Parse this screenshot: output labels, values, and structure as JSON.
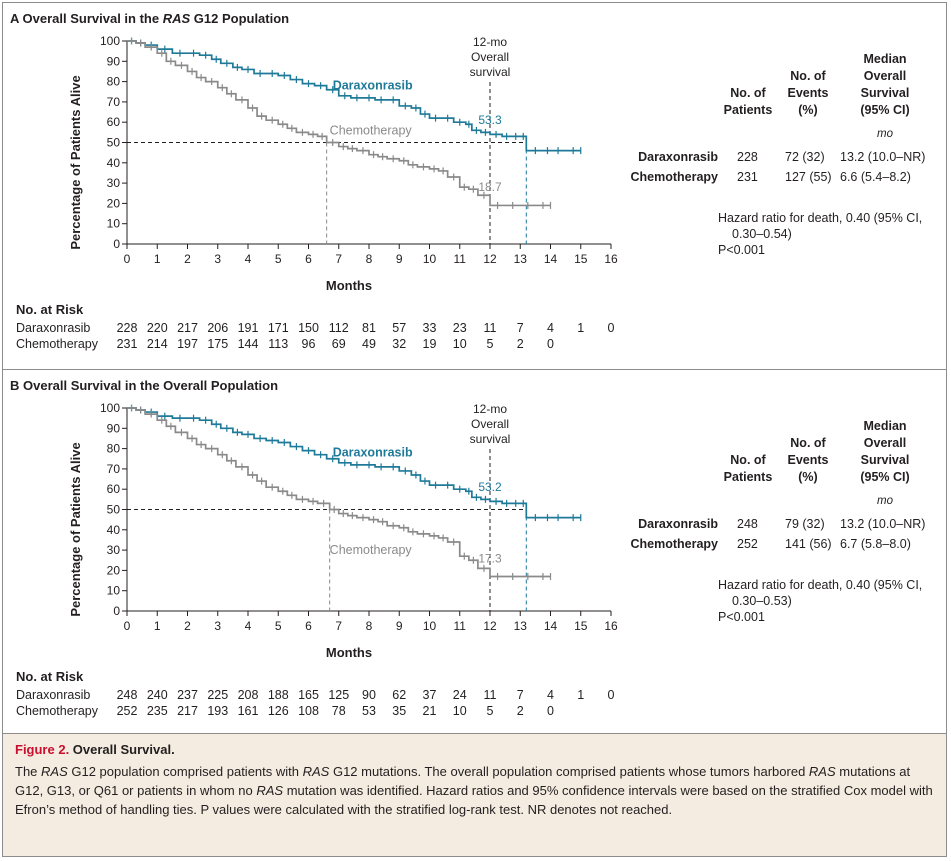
{
  "panels": [
    {
      "letter": "A",
      "title_pre": "Overall Survival in the ",
      "title_em": "RAS",
      "title_post": " G12 Population",
      "ylabel": "Percentage of Patients Alive",
      "xlabel": "Months",
      "landmark_label": [
        "12-mo",
        "Overall",
        "survival"
      ],
      "risk_title": "No. at Risk",
      "risk": [
        {
          "label": "Daraxonrasib",
          "values": [
            "228",
            "220",
            "217",
            "206",
            "191",
            "171",
            "150",
            "112",
            "81",
            "57",
            "33",
            "23",
            "11",
            "7",
            "4",
            "1",
            "0"
          ]
        },
        {
          "label": "Chemotherapy",
          "values": [
            "231",
            "214",
            "197",
            "175",
            "144",
            "113",
            "96",
            "69",
            "49",
            "32",
            "19",
            "10",
            "5",
            "2",
            "0"
          ]
        }
      ],
      "table": {
        "headers": {
          "patients": [
            "No. of",
            "Patients"
          ],
          "events": [
            "No. of",
            "Events",
            "(%)"
          ],
          "median": [
            "Median",
            "Overall",
            "Survival",
            "(95% CI)"
          ],
          "unit": "mo"
        },
        "rows": [
          {
            "label": "Daraxonrasib",
            "patients": "228",
            "events": "72 (32)",
            "median": "13.2 (10.0–NR)"
          },
          {
            "label": "Chemotherapy",
            "patients": "231",
            "events": "127 (55)",
            "median": "6.6 (5.4–8.2)"
          }
        ],
        "hr": [
          "Hazard ratio for death, 0.40 (95% CI,",
          "0.30–0.54)",
          "P<0.001"
        ]
      }
    },
    {
      "letter": "B",
      "title_pre": "Overall Survival in the Overall Population",
      "title_em": "",
      "title_post": "",
      "ylabel": "Percentage of Patients Alive",
      "xlabel": "Months",
      "landmark_label": [
        "12-mo",
        "Overall",
        "survival"
      ],
      "risk_title": "No. at Risk",
      "risk": [
        {
          "label": "Daraxonrasib",
          "values": [
            "248",
            "240",
            "237",
            "225",
            "208",
            "188",
            "165",
            "125",
            "90",
            "62",
            "37",
            "24",
            "11",
            "7",
            "4",
            "1",
            "0"
          ]
        },
        {
          "label": "Chemotherapy",
          "values": [
            "252",
            "235",
            "217",
            "193",
            "161",
            "126",
            "108",
            "78",
            "53",
            "35",
            "21",
            "10",
            "5",
            "2",
            "0"
          ]
        }
      ],
      "table": {
        "headers": {
          "patients": [
            "No. of",
            "Patients"
          ],
          "events": [
            "No. of",
            "Events",
            "(%)"
          ],
          "median": [
            "Median",
            "Overall",
            "Survival",
            "(95% CI)"
          ],
          "unit": "mo"
        },
        "rows": [
          {
            "label": "Daraxonrasib",
            "patients": "248",
            "events": "79 (32)",
            "median": "13.2 (10.0–NR)"
          },
          {
            "label": "Chemotherapy",
            "patients": "252",
            "events": "141 (56)",
            "median": "6.7 (5.8–8.0)"
          }
        ],
        "hr": [
          "Hazard ratio for death, 0.40 (95% CI,",
          "0.30–0.53)",
          "P<0.001"
        ]
      }
    }
  ],
  "caption": {
    "fig_label": "Figure 2.",
    "fig_title": " Overall Survival.",
    "body_html": "The <i>RAS</i> G12 population comprised patients with <i>RAS</i> G12 mutations. The overall population comprised patients whose tumors harbored <i>RAS</i> mutations at G12, G13, or Q61 or patients in whom no <i>RAS</i> mutation was identified. Hazard ratios and 95% confidence intervals were based on the stratified Cox model with Efron’s method of handling ties. P values were calculated with the stratified log-rank test. NR denotes not reached."
  },
  "colors": {
    "daraxonrasib": "#1f7a99",
    "chemotherapy": "#8a8a8a",
    "axis": "#231f20"
  },
  "chart_data": [
    {
      "type": "line",
      "title": "Overall Survival in the RAS G12 Population",
      "xlabel": "Months",
      "ylabel": "Percentage of Patients Alive",
      "xlim": [
        0,
        16
      ],
      "ylim": [
        0,
        100
      ],
      "xticks": [
        0,
        1,
        2,
        3,
        4,
        5,
        6,
        7,
        8,
        9,
        10,
        11,
        12,
        13,
        14,
        15,
        16
      ],
      "yticks": [
        0,
        10,
        20,
        30,
        40,
        50,
        60,
        70,
        80,
        90,
        100
      ],
      "landmark_x": 12,
      "median_line_y": 50,
      "series": [
        {
          "name": "Daraxonrasib",
          "label_value": "53.3",
          "median_x": 13.2,
          "x": [
            0,
            0.3,
            0.6,
            1,
            1.5,
            2,
            2.4,
            2.8,
            3.1,
            3.5,
            3.8,
            4.2,
            4.6,
            5,
            5.4,
            5.8,
            6.2,
            6.6,
            7,
            7.4,
            7.8,
            8.2,
            8.6,
            9,
            9.4,
            9.7,
            10,
            10.4,
            10.8,
            11.2,
            11.4,
            11.7,
            12,
            12.4,
            12.7,
            13,
            13.2,
            13.8,
            14,
            14.5,
            15
          ],
          "y": [
            100,
            99,
            98,
            96,
            94,
            94,
            93,
            91,
            89,
            87,
            86,
            84,
            84,
            83,
            81,
            79,
            78,
            76,
            73,
            72,
            72,
            71,
            71,
            68,
            67,
            64,
            62,
            62,
            60,
            59,
            56,
            55,
            54,
            53,
            53,
            53,
            46,
            46,
            46,
            46,
            46
          ]
        },
        {
          "name": "Chemotherapy",
          "label_value": "18.7",
          "median_x": 6.6,
          "x": [
            0,
            0.3,
            0.6,
            1,
            1.3,
            1.6,
            2,
            2.3,
            2.6,
            3,
            3.3,
            3.6,
            4,
            4.3,
            4.6,
            5,
            5.3,
            5.6,
            6,
            6.3,
            6.6,
            7,
            7.3,
            7.6,
            8,
            8.3,
            8.6,
            9,
            9.3,
            9.6,
            10,
            10.3,
            10.6,
            11,
            11.3,
            11.6,
            12,
            12.5,
            13,
            13.5,
            14
          ],
          "y": [
            100,
            99,
            97,
            94,
            90,
            88,
            85,
            82,
            80,
            77,
            74,
            71,
            67,
            63,
            61,
            59,
            57,
            55,
            54,
            53,
            50,
            48,
            47,
            46,
            44,
            43,
            42,
            41,
            39,
            38,
            37,
            36,
            33,
            28,
            27,
            24,
            19,
            19,
            19,
            19,
            19
          ]
        }
      ]
    },
    {
      "type": "line",
      "title": "Overall Survival in the Overall Population",
      "xlabel": "Months",
      "ylabel": "Percentage of Patients Alive",
      "xlim": [
        0,
        16
      ],
      "ylim": [
        0,
        100
      ],
      "xticks": [
        0,
        1,
        2,
        3,
        4,
        5,
        6,
        7,
        8,
        9,
        10,
        11,
        12,
        13,
        14,
        15,
        16
      ],
      "yticks": [
        0,
        10,
        20,
        30,
        40,
        50,
        60,
        70,
        80,
        90,
        100
      ],
      "landmark_x": 12,
      "median_line_y": 50,
      "series": [
        {
          "name": "Daraxonrasib",
          "label_value": "53.2",
          "median_x": 13.2,
          "x": [
            0,
            0.3,
            0.6,
            1,
            1.5,
            2,
            2.4,
            2.8,
            3.1,
            3.5,
            3.8,
            4.2,
            4.6,
            5,
            5.4,
            5.8,
            6.2,
            6.6,
            7,
            7.4,
            7.8,
            8.2,
            8.6,
            9,
            9.4,
            9.7,
            10,
            10.4,
            10.8,
            11.2,
            11.4,
            11.7,
            12,
            12.4,
            12.7,
            13,
            13.2,
            13.8,
            14,
            14.5,
            15
          ],
          "y": [
            100,
            99,
            98,
            96,
            95,
            95,
            94,
            92,
            90,
            88,
            87,
            85,
            84,
            83,
            81,
            79,
            77,
            75,
            73,
            72,
            72,
            71,
            71,
            69,
            67,
            64,
            62,
            62,
            60,
            59,
            56,
            55,
            54,
            53,
            53,
            53,
            46,
            46,
            46,
            46,
            46
          ]
        },
        {
          "name": "Chemotherapy",
          "label_value": "17.3",
          "median_x": 6.7,
          "x": [
            0,
            0.3,
            0.6,
            1,
            1.3,
            1.6,
            2,
            2.3,
            2.6,
            3,
            3.3,
            3.6,
            4,
            4.3,
            4.6,
            5,
            5.3,
            5.6,
            6,
            6.3,
            6.7,
            7,
            7.3,
            7.6,
            8,
            8.3,
            8.6,
            9,
            9.3,
            9.6,
            10,
            10.3,
            10.6,
            11,
            11.3,
            11.6,
            12,
            12.5,
            13,
            13.5,
            14
          ],
          "y": [
            100,
            99,
            97,
            94,
            91,
            88,
            85,
            82,
            80,
            77,
            74,
            71,
            67,
            64,
            61,
            59,
            57,
            55,
            54,
            53,
            50,
            48,
            47,
            46,
            45,
            44,
            42,
            41,
            39,
            38,
            37,
            36,
            34,
            27,
            25,
            21,
            17,
            17,
            17,
            17,
            17
          ]
        }
      ]
    }
  ]
}
